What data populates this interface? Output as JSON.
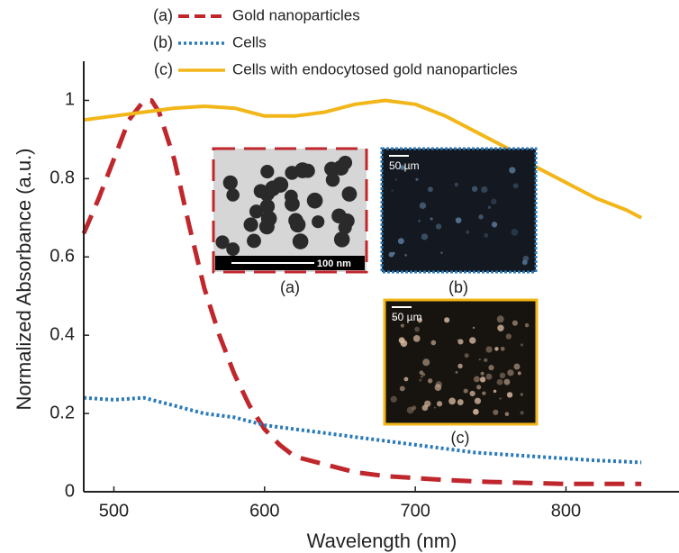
{
  "chart_data": {
    "type": "line",
    "x_label": "Wavelength (nm)",
    "y_label": "Normalized Absorbance (a.u.)",
    "xlim": [
      480,
      875
    ],
    "ylim": [
      0,
      1.1
    ],
    "xticks": [
      500,
      600,
      700,
      800
    ],
    "yticks": [
      0,
      0.2,
      0.4,
      0.6,
      0.8,
      1
    ],
    "series": [
      {
        "tag": "(a)",
        "name": "Gold nanoparticles",
        "color": "#c0272d",
        "dash": "dashed",
        "x": [
          480,
          490,
          500,
          510,
          520,
          525,
          530,
          540,
          550,
          560,
          570,
          580,
          590,
          600,
          610,
          620,
          640,
          660,
          680,
          700,
          720,
          750,
          800,
          850
        ],
        "values": [
          0.66,
          0.75,
          0.85,
          0.95,
          1.0,
          1.0,
          0.97,
          0.85,
          0.68,
          0.52,
          0.4,
          0.3,
          0.22,
          0.16,
          0.12,
          0.09,
          0.07,
          0.05,
          0.04,
          0.035,
          0.03,
          0.025,
          0.02,
          0.02
        ]
      },
      {
        "tag": "(b)",
        "name": "Cells",
        "color": "#2a7ab8",
        "dash": "dotted",
        "x": [
          480,
          500,
          520,
          540,
          560,
          580,
          600,
          620,
          640,
          660,
          680,
          700,
          720,
          740,
          760,
          780,
          800,
          820,
          850
        ],
        "values": [
          0.24,
          0.235,
          0.24,
          0.22,
          0.2,
          0.19,
          0.17,
          0.16,
          0.15,
          0.14,
          0.13,
          0.12,
          0.11,
          0.1,
          0.095,
          0.09,
          0.085,
          0.08,
          0.075
        ]
      },
      {
        "tag": "(c)",
        "name": "Cells with endocytosed gold nanoparticles",
        "color": "#f2b619",
        "dash": "solid",
        "x": [
          480,
          500,
          520,
          540,
          560,
          580,
          600,
          620,
          640,
          660,
          680,
          700,
          720,
          740,
          760,
          780,
          800,
          820,
          840,
          850
        ],
        "values": [
          0.95,
          0.96,
          0.97,
          0.98,
          0.985,
          0.98,
          0.96,
          0.96,
          0.97,
          0.99,
          1.0,
          0.99,
          0.96,
          0.92,
          0.88,
          0.83,
          0.79,
          0.75,
          0.72,
          0.7
        ]
      }
    ],
    "insets": [
      {
        "caption": "(a)",
        "scale_label": "100 nm"
      },
      {
        "caption": "(b)",
        "scale_label": "50 µm"
      },
      {
        "caption": "(c)",
        "scale_label": "50 µm"
      }
    ]
  }
}
